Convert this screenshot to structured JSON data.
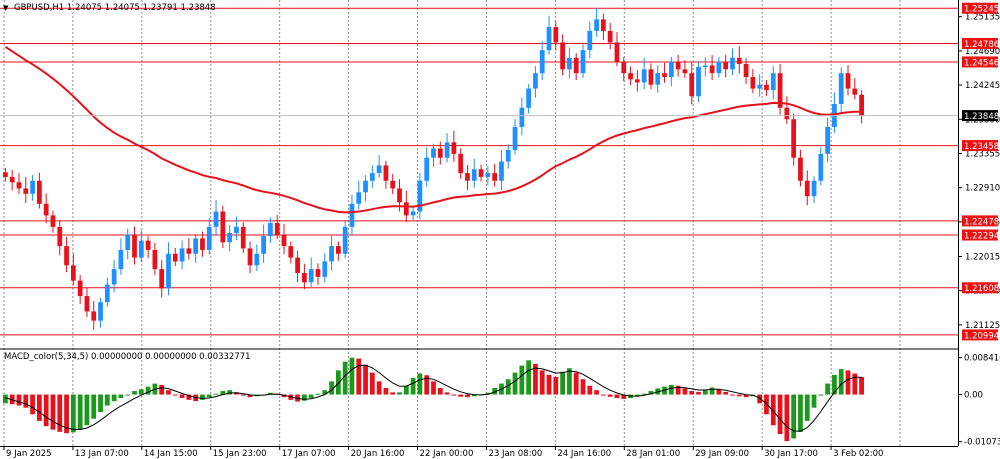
{
  "chart_data": [
    {
      "type": "candlestick",
      "title": "GBPUSD,H1  1.24075 1.24075 1.23791 1.23848",
      "symbol": "GBPUSD",
      "timeframe": "H1",
      "ohlc": {
        "open": 1.24075,
        "high": 1.24075,
        "low": 1.23791,
        "close": 1.23848
      },
      "current_price_label": "1.23848",
      "ylim": [
        1.2085,
        1.253
      ],
      "y_ticks": [
        "1.25135",
        "1.24690",
        "1.24245",
        "1.23800",
        "1.23355",
        "1.22910",
        "1.22465",
        "1.22015",
        "1.21570",
        "1.21125"
      ],
      "x_ticks": [
        "9 Jan 2025",
        "13 Jan 07:00",
        "14 Jan 15:00",
        "15 Jan 23:00",
        "17 Jan 07:00",
        "20 Jan 16:00",
        "22 Jan 00:00",
        "23 Jan 08:00",
        "24 Jan 16:00",
        "28 Jan 01:00",
        "29 Jan 09:00",
        "30 Jan 17:00",
        "3 Feb 02:00"
      ],
      "horizontal_levels": [
        "1.25245",
        "1.24786",
        "1.24546",
        "1.23458",
        "1.22478",
        "1.22294",
        "1.21608",
        "1.20994"
      ],
      "moving_average_color": "#e8111b",
      "up_color": "#1e90ff",
      "down_color": "#e8111b",
      "grid": "vertical dotted",
      "closes": [
        1.2305,
        1.2298,
        1.229,
        1.2283,
        1.23,
        1.227,
        1.2255,
        1.224,
        1.2215,
        1.219,
        1.217,
        1.215,
        1.213,
        1.2118,
        1.2142,
        1.2165,
        1.2185,
        1.221,
        1.223,
        1.22,
        1.2222,
        1.221,
        1.2185,
        1.216,
        1.2205,
        1.2195,
        1.2212,
        1.2205,
        1.2225,
        1.221,
        1.224,
        1.226,
        1.222,
        1.2232,
        1.224,
        1.2212,
        1.219,
        1.2205,
        1.2228,
        1.2245,
        1.223,
        1.2215,
        1.22,
        1.218,
        1.2168,
        1.2185,
        1.2175,
        1.2195,
        1.2215,
        1.2205,
        1.224,
        1.227,
        1.2285,
        1.23,
        1.231,
        1.232,
        1.23,
        1.229,
        1.2272,
        1.2255,
        1.226,
        1.23,
        1.233,
        1.2342,
        1.233,
        1.235,
        1.2335,
        1.231,
        1.23,
        1.2315,
        1.2305,
        1.231,
        1.23,
        1.2325,
        1.234,
        1.237,
        1.2395,
        1.242,
        1.244,
        1.247,
        1.25,
        1.248,
        1.2445,
        1.246,
        1.244,
        1.247,
        1.2495,
        1.251,
        1.2495,
        1.248,
        1.2455,
        1.244,
        1.2432,
        1.2428,
        1.2445,
        1.2425,
        1.244,
        1.2435,
        1.2455,
        1.2445,
        1.244,
        1.241,
        1.2448,
        1.245,
        1.244,
        1.2455,
        1.2445,
        1.246,
        1.2452,
        1.2435,
        1.242,
        1.2425,
        1.2418,
        1.244,
        1.2395,
        1.238,
        1.233,
        1.23,
        1.228,
        1.23,
        1.2335,
        1.237,
        1.24,
        1.244,
        1.242,
        1.2412,
        1.2385
      ]
    },
    {
      "type": "histogram",
      "title": "MACD_color(5,34,5) 0.00000000 0.00000000 0.00332771",
      "indicator": "MACD_color(5,34,5)",
      "values_text": "0.00000000 0.00000000 0.00332771",
      "ylim": [
        -0.0115,
        0.0097
      ],
      "y_ticks": [
        "0.0084161",
        "0.00",
        "-0.0107387"
      ],
      "up_color": "#1a9a1a",
      "down_color": "#e8111b",
      "signal_color": "#000000",
      "values": [
        -0.002,
        -0.0022,
        -0.0025,
        -0.003,
        -0.0045,
        -0.006,
        -0.0072,
        -0.008,
        -0.0085,
        -0.0088,
        -0.0086,
        -0.008,
        -0.007,
        -0.0055,
        -0.004,
        -0.0025,
        -0.0015,
        -0.0008,
        -0.0002,
        0.0008,
        0.0012,
        0.0018,
        0.0025,
        0.0022,
        0.001,
        -0.0002,
        -0.0008,
        -0.0012,
        -0.0015,
        -0.0012,
        -0.0006,
        0.0002,
        0.0008,
        0.001,
        0.0005,
        -0.0002,
        -0.0006,
        -0.0004,
        0.0,
        0.0004,
        0.0002,
        -0.0006,
        -0.0012,
        -0.0016,
        -0.0014,
        -0.0008,
        0.0002,
        0.001,
        0.003,
        0.0055,
        0.0075,
        0.0084,
        0.0082,
        0.0068,
        0.005,
        0.003,
        0.0015,
        0.0005,
        0.0005,
        0.002,
        0.0038,
        0.0048,
        0.0044,
        0.003,
        0.0015,
        0.0005,
        -0.0002,
        -0.0005,
        -0.0006,
        -0.0004,
        -0.0002,
        0.0004,
        0.0015,
        0.0025,
        0.0035,
        0.005,
        0.0066,
        0.0078,
        0.007,
        0.0055,
        0.0045,
        0.004,
        0.0052,
        0.006,
        0.005,
        0.0035,
        0.002,
        0.001,
        0.0,
        -0.0005,
        -0.0008,
        -0.001,
        -0.0008,
        -0.0004,
        0.0002,
        0.0008,
        0.0014,
        0.0018,
        0.0022,
        0.002,
        0.0014,
        0.0008,
        0.0006,
        0.001,
        0.0016,
        0.0012,
        0.0006,
        0.0,
        -0.0004,
        -0.0006,
        -0.0004,
        -0.002,
        -0.0045,
        -0.007,
        -0.009,
        -0.0106,
        -0.01,
        -0.0085,
        -0.006,
        -0.003,
        0.0,
        0.0025,
        0.0045,
        0.0058,
        0.0055,
        0.0048,
        0.004
      ]
    }
  ]
}
